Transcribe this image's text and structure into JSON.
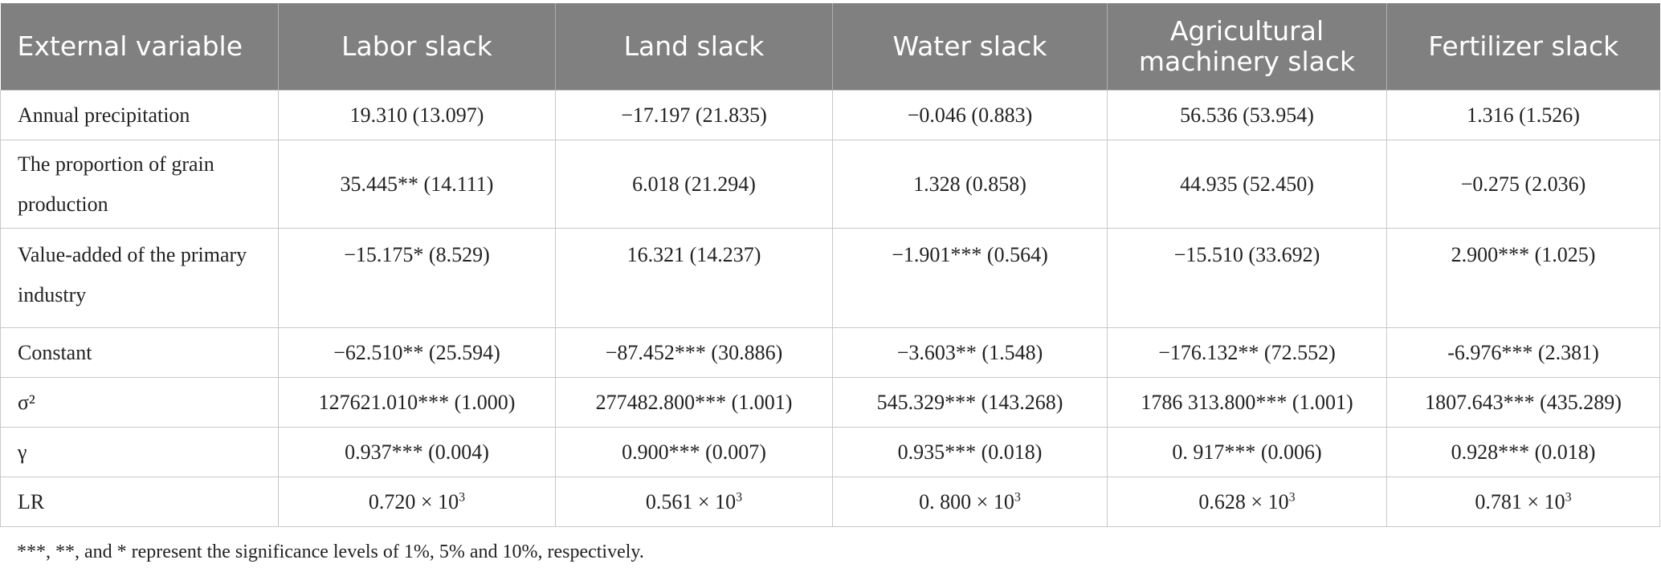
{
  "table": {
    "headers": [
      "External variable",
      "Labor slack",
      "Land slack",
      "Water slack",
      "Agricultural machinery slack",
      "Fertilizer slack"
    ],
    "rows": [
      {
        "label": "Annual precipitation",
        "cells": [
          "19.310 (13.097)",
          "−17.197 (21.835)",
          "−0.046 (0.883)",
          "56.536 (53.954)",
          "1.316 (1.526)"
        ]
      },
      {
        "label": "The proportion of grain production",
        "cells": [
          "35.445** (14.111)",
          "6.018 (21.294)",
          "1.328 (0.858)",
          "44.935 (52.450)",
          "−0.275 (2.036)"
        ]
      },
      {
        "label": "Value-added of the primary industry",
        "cells": [
          "−15.175* (8.529)",
          "16.321 (14.237)",
          "−1.901*** (0.564)",
          "−15.510 (33.692)",
          "2.900*** (1.025)"
        ]
      },
      {
        "label": "Constant",
        "cells": [
          "−62.510** (25.594)",
          "−87.452*** (30.886)",
          "−3.603** (1.548)",
          "−176.132** (72.552)",
          "-6.976*** (2.381)"
        ]
      },
      {
        "label": "σ²",
        "cells": [
          "127621.010*** (1.000)",
          "277482.800*** (1.001)",
          "545.329*** (143.268)",
          "1786 313.800*** (1.001)",
          "1807.643*** (435.289)"
        ]
      },
      {
        "label": "γ",
        "cells": [
          "0.937*** (0.004)",
          "0.900*** (0.007)",
          "0.935*** (0.018)",
          "0. 917*** (0.006)",
          "0.928*** (0.018)"
        ]
      },
      {
        "label": "LR",
        "cells": [
          "0.720 × 10",
          "0.561 × 10",
          "0. 800 × 10",
          "0.628 × 10",
          "0.781 × 10"
        ],
        "exponent": "3"
      }
    ]
  },
  "footnote": "***, **, and * represent the significance levels of 1%, 5% and 10%, respectively."
}
